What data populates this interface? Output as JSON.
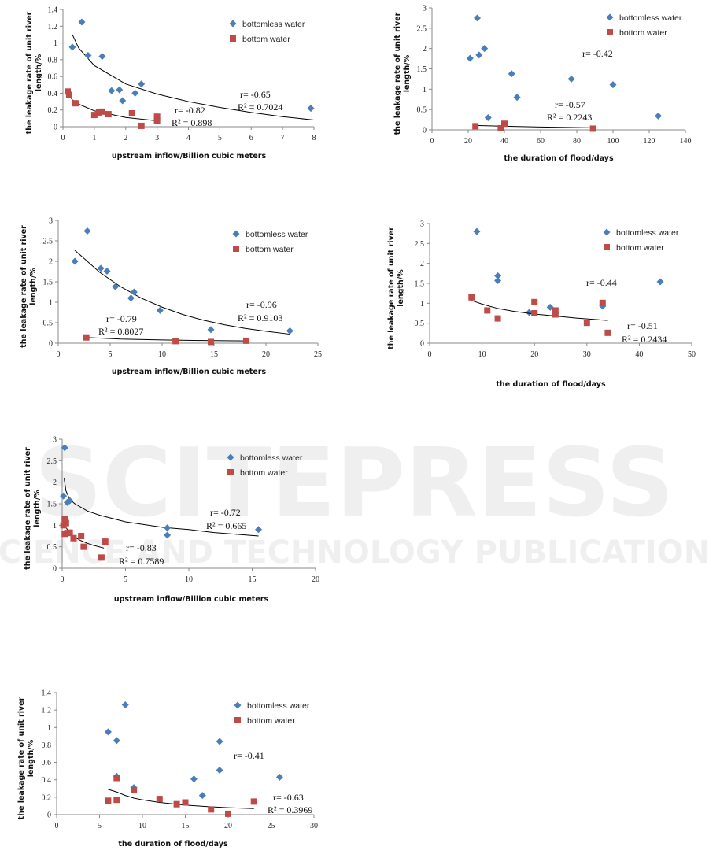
{
  "watermark": {
    "title": "SCITEPRESS",
    "subtitle": "SCIENCE AND TECHNOLOGY PUBLICATIONS"
  },
  "colors": {
    "bottomless": "#4A7EBB",
    "bottom": "#BE4B48",
    "trend": "#000000"
  },
  "chart_data": [
    {
      "type": "scatter",
      "xlabel": "upstream inflow/Billion cubic meters",
      "ylabel": [
        "the leakage rate of unit river",
        "length/%"
      ],
      "xlim": [
        0,
        8
      ],
      "ylim": [
        0,
        1.4
      ],
      "xticks": [
        "0",
        "1",
        "2",
        "3",
        "4",
        "5",
        "6",
        "7",
        "8"
      ],
      "yticks": [
        "0",
        "0.2",
        "0.4",
        "0.6",
        "0.8",
        "1",
        "1.2",
        "1.4"
      ],
      "legend": [
        "bottomless water",
        "bottom water"
      ],
      "legend_position": "top-right",
      "series": [
        {
          "name": "bottomless water",
          "points": [
            [
              0.3,
              0.95
            ],
            [
              0.6,
              1.25
            ],
            [
              0.8,
              0.85
            ],
            [
              1.25,
              0.84
            ],
            [
              1.55,
              0.43
            ],
            [
              1.8,
              0.44
            ],
            [
              1.9,
              0.31
            ],
            [
              2.3,
              0.4
            ],
            [
              2.5,
              0.51
            ],
            [
              7.9,
              0.22
            ]
          ],
          "trend": [
            [
              0.3,
              1.1
            ],
            [
              0.5,
              0.94
            ],
            [
              1,
              0.73
            ],
            [
              2,
              0.51
            ],
            [
              3,
              0.39
            ],
            [
              4,
              0.3
            ],
            [
              5,
              0.23
            ],
            [
              6,
              0.17
            ],
            [
              7,
              0.12
            ],
            [
              8,
              0.08
            ]
          ],
          "r": "r= -0.65",
          "r2": "R² = 0.7024"
        },
        {
          "name": "bottom water",
          "points": [
            [
              0.15,
              0.42
            ],
            [
              0.2,
              0.38
            ],
            [
              0.4,
              0.28
            ],
            [
              1.0,
              0.14
            ],
            [
              1.15,
              0.17
            ],
            [
              1.25,
              0.18
            ],
            [
              1.45,
              0.15
            ],
            [
              2.2,
              0.16
            ],
            [
              2.5,
              0.01
            ],
            [
              3.0,
              0.12
            ],
            [
              3.0,
              0.07
            ]
          ],
          "trend": [
            [
              0.15,
              0.4
            ],
            [
              0.3,
              0.32
            ],
            [
              0.5,
              0.27
            ],
            [
              1,
              0.19
            ],
            [
              1.5,
              0.15
            ],
            [
              2,
              0.11
            ],
            [
              2.5,
              0.09
            ],
            [
              3,
              0.07
            ]
          ],
          "r": "r= -0.82",
          "r2": "R² = 0.898"
        }
      ]
    },
    {
      "type": "scatter",
      "xlabel": "the duration of flood/days",
      "ylabel": [
        "the leakage rate of unit river",
        "length/%"
      ],
      "xlim": [
        0,
        140
      ],
      "ylim": [
        0,
        3
      ],
      "xticks": [
        "0",
        "20",
        "40",
        "60",
        "80",
        "100",
        "120",
        "140"
      ],
      "yticks": [
        "0",
        "0.5",
        "1",
        "1.5",
        "2",
        "2.5",
        "3"
      ],
      "legend": [
        "bottomless water",
        "bottom water"
      ],
      "legend_position": "top-right",
      "series": [
        {
          "name": "bottomless water",
          "points": [
            [
              21,
              1.76
            ],
            [
              25,
              2.75
            ],
            [
              26,
              1.84
            ],
            [
              29,
              2.0
            ],
            [
              31,
              0.3
            ],
            [
              44,
              1.38
            ],
            [
              47,
              0.8
            ],
            [
              77,
              1.25
            ],
            [
              100,
              1.11
            ],
            [
              125,
              0.34
            ]
          ],
          "trend": [],
          "r": "r= -0.42",
          "r2": ""
        },
        {
          "name": "bottom water",
          "points": [
            [
              24,
              0.09
            ],
            [
              38,
              0.04
            ],
            [
              40,
              0.15
            ],
            [
              89,
              0.03
            ]
          ],
          "trend": [
            [
              24,
              0.11
            ],
            [
              40,
              0.09
            ],
            [
              60,
              0.07
            ],
            [
              89,
              0.05
            ]
          ],
          "r": "r= -0.57",
          "r2": "R² = 0.2243"
        }
      ]
    },
    {
      "type": "scatter",
      "xlabel": "upstream inflow/Billion cubic meters",
      "ylabel": [
        "the leakage rate of unit river",
        "length/%"
      ],
      "xlim": [
        0,
        25
      ],
      "ylim": [
        0,
        3
      ],
      "xticks": [
        "0",
        "5",
        "10",
        "15",
        "20",
        "25"
      ],
      "yticks": [
        "0",
        "0.5",
        "1",
        "1.5",
        "2",
        "2.5",
        "3"
      ],
      "legend": [
        "bottomless water",
        "bottom water"
      ],
      "legend_position": "top-right",
      "series": [
        {
          "name": "bottomless water",
          "points": [
            [
              1.6,
              2.0
            ],
            [
              2.8,
              2.74
            ],
            [
              4.1,
              1.83
            ],
            [
              4.7,
              1.76
            ],
            [
              5.5,
              1.38
            ],
            [
              7.0,
              1.1
            ],
            [
              7.3,
              1.25
            ],
            [
              9.8,
              0.8
            ],
            [
              14.7,
              0.33
            ],
            [
              22.3,
              0.3
            ]
          ],
          "trend": [
            [
              1.6,
              2.27
            ],
            [
              4,
              1.73
            ],
            [
              6,
              1.38
            ],
            [
              8,
              1.1
            ],
            [
              10,
              0.88
            ],
            [
              12,
              0.7
            ],
            [
              14,
              0.56
            ],
            [
              16,
              0.45
            ],
            [
              18,
              0.36
            ],
            [
              20,
              0.29
            ],
            [
              22.3,
              0.22
            ]
          ],
          "r": "r= -0.96",
          "r2": "R² = 0.9103"
        },
        {
          "name": "bottom water",
          "points": [
            [
              2.7,
              0.14
            ],
            [
              11.3,
              0.05
            ],
            [
              14.7,
              0.03
            ],
            [
              18.1,
              0.06
            ]
          ],
          "trend": [
            [
              2.7,
              0.14
            ],
            [
              6,
              0.1
            ],
            [
              10,
              0.08
            ],
            [
              14,
              0.065
            ],
            [
              18.1,
              0.055
            ]
          ],
          "r": "r= -0.79",
          "r2": "R² = 0.8027"
        }
      ]
    },
    {
      "type": "scatter",
      "xlabel": "the duration of flood/days",
      "ylabel": [
        "the leakage rate of unit river",
        "length/%"
      ],
      "xlim": [
        0,
        50
      ],
      "ylim": [
        0,
        3
      ],
      "xticks": [
        "0",
        "10",
        "20",
        "30",
        "40",
        "50"
      ],
      "yticks": [
        "0",
        "0.5",
        "1",
        "1.5",
        "2",
        "2.5",
        "3"
      ],
      "legend": [
        "bottomless water",
        "bottom water"
      ],
      "legend_position": "top-right",
      "series": [
        {
          "name": "bottomless water",
          "points": [
            [
              9,
              2.8
            ],
            [
              13,
              1.69
            ],
            [
              13,
              1.57
            ],
            [
              19,
              0.77
            ],
            [
              23,
              0.9
            ],
            [
              33,
              0.93
            ],
            [
              44,
              1.54
            ]
          ],
          "trend": [],
          "r": "r= -0.44",
          "r2": ""
        },
        {
          "name": "bottom water",
          "points": [
            [
              8,
              1.15
            ],
            [
              11,
              0.82
            ],
            [
              13,
              0.62
            ],
            [
              20,
              1.03
            ],
            [
              20,
              0.75
            ],
            [
              24,
              0.82
            ],
            [
              24,
              0.72
            ],
            [
              30,
              0.51
            ],
            [
              33,
              1.01
            ],
            [
              34,
              0.26
            ]
          ],
          "trend": [
            [
              8,
              1.07
            ],
            [
              10,
              0.98
            ],
            [
              13,
              0.87
            ],
            [
              16,
              0.8
            ],
            [
              20,
              0.73
            ],
            [
              24,
              0.68
            ],
            [
              28,
              0.63
            ],
            [
              34,
              0.57
            ]
          ],
          "r": "r= -0.51",
          "r2": "R² = 0.2434"
        }
      ]
    },
    {
      "type": "scatter",
      "xlabel": "upstream inflow/Billion cubic meters",
      "ylabel": [
        "the leakage rate of unit river",
        "length/%"
      ],
      "xlim": [
        0,
        20
      ],
      "ylim": [
        0,
        3
      ],
      "xticks": [
        "0",
        "5",
        "10",
        "15",
        "20"
      ],
      "yticks": [
        "0",
        "0.5",
        "1",
        "1.5",
        "2",
        "2.5",
        "3"
      ],
      "legend": [
        "bottomless water",
        "bottom water"
      ],
      "legend_position": "top-right",
      "series": [
        {
          "name": "bottomless water",
          "points": [
            [
              0.2,
              2.8
            ],
            [
              0.1,
              1.68
            ],
            [
              0.4,
              1.53
            ],
            [
              0.6,
              1.57
            ],
            [
              8.3,
              0.94
            ],
            [
              8.3,
              0.77
            ],
            [
              15.5,
              0.9
            ]
          ],
          "trend": [
            [
              0.15,
              2.1
            ],
            [
              0.3,
              1.8
            ],
            [
              0.6,
              1.6
            ],
            [
              1,
              1.5
            ],
            [
              2,
              1.33
            ],
            [
              3,
              1.23
            ],
            [
              5,
              1.08
            ],
            [
              8,
              0.95
            ],
            [
              10,
              0.9
            ],
            [
              12,
              0.83
            ],
            [
              15.5,
              0.75
            ]
          ],
          "r": "r= -0.72",
          "r2": "R² = 0.665"
        },
        {
          "name": "bottom water",
          "points": [
            [
              0.1,
              1.0
            ],
            [
              0.2,
              1.15
            ],
            [
              0.3,
              1.05
            ],
            [
              0.2,
              0.8
            ],
            [
              0.6,
              0.83
            ],
            [
              0.9,
              0.7
            ],
            [
              1.5,
              0.75
            ],
            [
              1.7,
              0.5
            ],
            [
              3.1,
              0.25
            ],
            [
              3.4,
              0.62
            ],
            [
              0.4,
              0.82
            ]
          ],
          "trend": [
            [
              0.15,
              1.06
            ],
            [
              0.3,
              0.95
            ],
            [
              0.6,
              0.82
            ],
            [
              1,
              0.72
            ],
            [
              1.5,
              0.64
            ],
            [
              2,
              0.58
            ],
            [
              2.5,
              0.53
            ],
            [
              3.3,
              0.47
            ]
          ],
          "r": "r= -0.83",
          "r2": "R² = 0.7589"
        }
      ]
    },
    {
      "type": "scatter",
      "xlabel": "the duration of flood/days",
      "ylabel": [
        "the leakage rate of unit river",
        "length/%"
      ],
      "xlim": [
        0,
        30
      ],
      "ylim": [
        0,
        1.4
      ],
      "xticks": [
        "0",
        "5",
        "10",
        "15",
        "20",
        "25",
        "30"
      ],
      "yticks": [
        "0",
        "0.2",
        "0.4",
        "0.6",
        "0.8",
        "1",
        "1.2",
        "1.4"
      ],
      "legend": [
        "bottomless water",
        "bottom water"
      ],
      "legend_position": "top-right",
      "series": [
        {
          "name": "bottomless water",
          "points": [
            [
              6,
              0.95
            ],
            [
              7,
              0.85
            ],
            [
              7,
              0.44
            ],
            [
              8,
              1.26
            ],
            [
              9,
              0.31
            ],
            [
              16,
              0.41
            ],
            [
              17,
              0.22
            ],
            [
              19,
              0.84
            ],
            [
              19,
              0.51
            ],
            [
              26,
              0.43
            ]
          ],
          "trend": [],
          "r": "r= -0.41",
          "r2": ""
        },
        {
          "name": "bottom water",
          "points": [
            [
              6,
              0.16
            ],
            [
              7,
              0.42
            ],
            [
              7,
              0.17
            ],
            [
              9,
              0.28
            ],
            [
              12,
              0.18
            ],
            [
              14,
              0.12
            ],
            [
              15,
              0.14
            ],
            [
              18,
              0.06
            ],
            [
              20,
              0.01
            ],
            [
              23,
              0.15
            ]
          ],
          "trend": [
            [
              6,
              0.29
            ],
            [
              7,
              0.26
            ],
            [
              8,
              0.22
            ],
            [
              9,
              0.19
            ],
            [
              10,
              0.17
            ],
            [
              12,
              0.14
            ],
            [
              15,
              0.11
            ],
            [
              18,
              0.09
            ],
            [
              20,
              0.08
            ],
            [
              23,
              0.07
            ]
          ],
          "r": "r= -0.63",
          "r2": "R² = 0.3969"
        }
      ]
    }
  ]
}
